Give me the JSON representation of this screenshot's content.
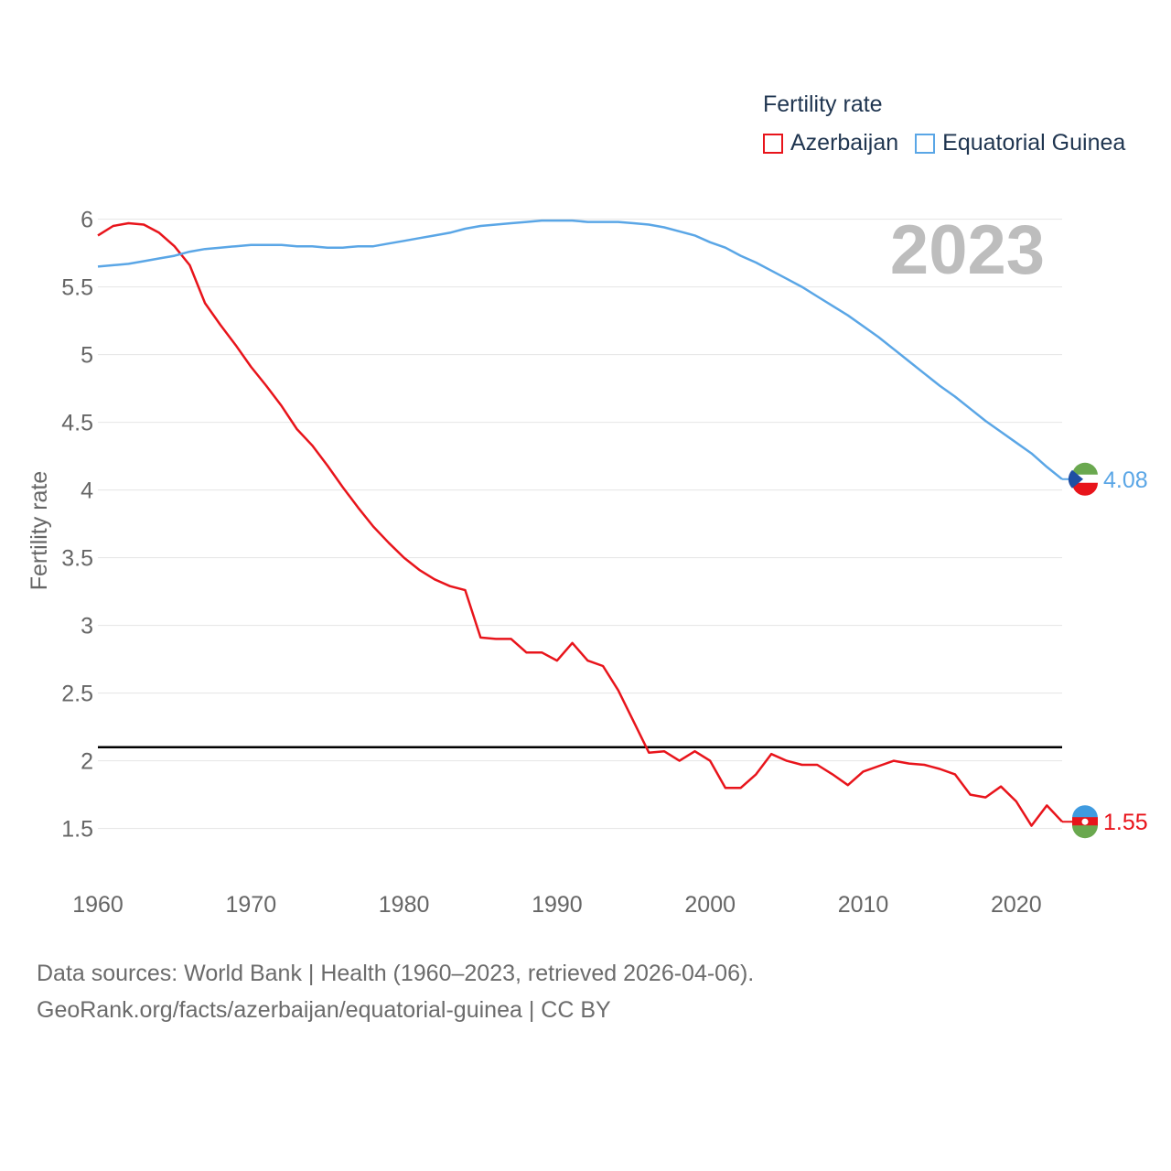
{
  "legend": {
    "title": "Fertility rate",
    "items": [
      {
        "label": "Azerbaijan",
        "color": "#e8141b"
      },
      {
        "label": "Equatorial Guinea",
        "color": "#5aa6e6"
      }
    ]
  },
  "year_label": "2023",
  "source": {
    "line1": "Data sources: World Bank | Health (1960–2023, retrieved 2026-04-06).",
    "line2": "GeoRank.org/facts/azerbaijan/equatorial-guinea | CC BY"
  },
  "chart_data": {
    "type": "line",
    "title": "Fertility rate",
    "xlabel": "",
    "ylabel": "Fertility rate",
    "xlim": [
      1960,
      2023
    ],
    "ylim": [
      1.2,
      6.2
    ],
    "xticks": [
      1960,
      1970,
      1980,
      1990,
      2000,
      2010,
      2020
    ],
    "yticks": [
      1.5,
      2,
      2.5,
      3,
      3.5,
      4,
      4.5,
      5,
      5.5,
      6
    ],
    "reference_line": {
      "y": 2.1,
      "color": "#000000"
    },
    "x": [
      1960,
      1961,
      1962,
      1963,
      1964,
      1965,
      1966,
      1967,
      1968,
      1969,
      1970,
      1971,
      1972,
      1973,
      1974,
      1975,
      1976,
      1977,
      1978,
      1979,
      1980,
      1981,
      1982,
      1983,
      1984,
      1985,
      1986,
      1987,
      1988,
      1989,
      1990,
      1991,
      1992,
      1993,
      1994,
      1995,
      1996,
      1997,
      1998,
      1999,
      2000,
      2001,
      2002,
      2003,
      2004,
      2005,
      2006,
      2007,
      2008,
      2009,
      2010,
      2011,
      2012,
      2013,
      2014,
      2015,
      2016,
      2017,
      2018,
      2019,
      2020,
      2021,
      2022,
      2023
    ],
    "series": [
      {
        "name": "Azerbaijan",
        "color": "#e8141b",
        "end_label": "1.55",
        "values": [
          5.88,
          5.95,
          5.97,
          5.96,
          5.9,
          5.8,
          5.66,
          5.38,
          5.22,
          5.07,
          4.91,
          4.77,
          4.62,
          4.45,
          4.33,
          4.18,
          4.02,
          3.87,
          3.73,
          3.61,
          3.5,
          3.41,
          3.34,
          3.29,
          3.26,
          2.91,
          2.9,
          2.9,
          2.8,
          2.8,
          2.74,
          2.87,
          2.74,
          2.7,
          2.52,
          2.29,
          2.06,
          2.07,
          2.0,
          2.07,
          2.0,
          1.8,
          1.8,
          1.9,
          2.05,
          2.0,
          1.97,
          1.97,
          1.9,
          1.82,
          1.92,
          1.96,
          2.0,
          1.98,
          1.97,
          1.94,
          1.9,
          1.75,
          1.73,
          1.81,
          1.7,
          1.52,
          1.67,
          1.55
        ]
      },
      {
        "name": "Equatorial Guinea",
        "color": "#5aa6e6",
        "end_label": "4.08",
        "values": [
          5.65,
          5.66,
          5.67,
          5.69,
          5.71,
          5.73,
          5.76,
          5.78,
          5.79,
          5.8,
          5.81,
          5.81,
          5.81,
          5.8,
          5.8,
          5.79,
          5.79,
          5.8,
          5.8,
          5.82,
          5.84,
          5.86,
          5.88,
          5.9,
          5.93,
          5.95,
          5.96,
          5.97,
          5.98,
          5.99,
          5.99,
          5.99,
          5.98,
          5.98,
          5.98,
          5.97,
          5.96,
          5.94,
          5.91,
          5.88,
          5.83,
          5.79,
          5.73,
          5.68,
          5.62,
          5.56,
          5.5,
          5.43,
          5.36,
          5.29,
          5.21,
          5.13,
          5.04,
          4.95,
          4.86,
          4.77,
          4.69,
          4.6,
          4.51,
          4.43,
          4.35,
          4.27,
          4.17,
          4.08
        ]
      }
    ]
  }
}
